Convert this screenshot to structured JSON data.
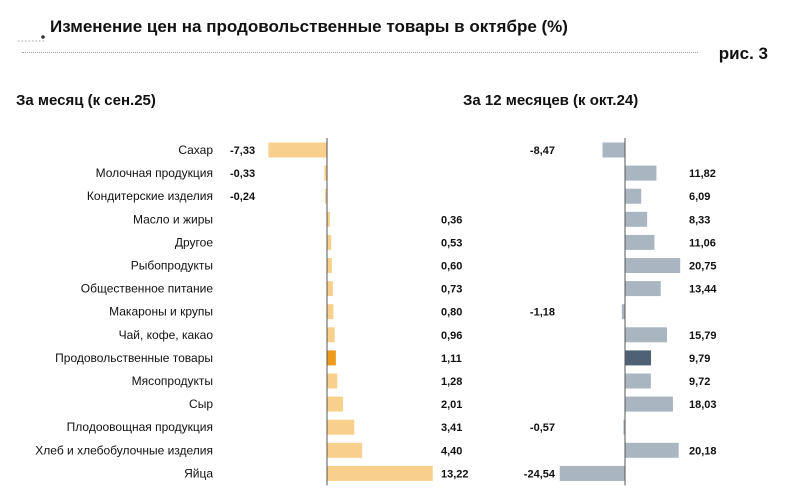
{
  "header": {
    "title": "Изменение цен на продовольственные товары в октябре (%)",
    "figure_label": "рис. 3"
  },
  "colors": {
    "monthly_bar": "#f9cf8c",
    "monthly_bar_highlight": "#ee9a1e",
    "yearly_bar": "#a9b5c0",
    "yearly_bar_highlight": "#4f6174",
    "axis": "#555555"
  },
  "chart_data": {
    "type": "bar",
    "orientation": "horizontal",
    "title": "Изменение цен на продовольственные товары в октябре (%)",
    "categories": [
      "Сахар",
      "Молочная продукция",
      "Кондитерские изделия",
      "Масло и жиры",
      "Другое",
      "Рыбопродукты",
      "Общественное питание",
      "Макароны и крупы",
      "Чай, кофе, какао",
      "Продовольственные товары",
      "Мясопродукты",
      "Сыр",
      "Плодоовощная продукция",
      "Хлеб и хлебобулочные изделия",
      "Яйца"
    ],
    "highlight_category": "Продовольственные товары",
    "series": [
      {
        "name": "За месяц (к сен.25)",
        "values": [
          -7.33,
          -0.33,
          -0.24,
          0.36,
          0.53,
          0.6,
          0.73,
          0.8,
          0.96,
          1.11,
          1.28,
          2.01,
          3.41,
          4.4,
          13.22
        ],
        "labels": [
          "-7,33",
          "-0,33",
          "-0,24",
          "0,36",
          "0,53",
          "0,60",
          "0,73",
          "0,80",
          "0,96",
          "1,11",
          "1,28",
          "2,01",
          "3,41",
          "4,40",
          "13,22"
        ]
      },
      {
        "name": "За 12 месяцев (к окт.24)",
        "values": [
          -8.47,
          11.82,
          6.09,
          8.33,
          11.06,
          20.75,
          13.44,
          -1.18,
          15.79,
          9.79,
          9.72,
          18.03,
          -0.57,
          20.18,
          -24.54
        ],
        "labels": [
          "-8,47",
          "11,82",
          "6,09",
          "8,33",
          "11,06",
          "20,75",
          "13,44",
          "-1,18",
          "15,79",
          "9,79",
          "9,72",
          "18,03",
          "-0,57",
          "20,18",
          "-24,54"
        ]
      }
    ]
  }
}
